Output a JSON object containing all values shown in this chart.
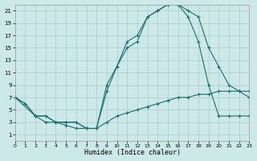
{
  "xlabel": "Humidex (Indice chaleur)",
  "bg_color": "#cce8e8",
  "grid_color": "#aacccc",
  "line_color": "#1a7070",
  "xlim": [
    0,
    23
  ],
  "ylim": [
    0,
    22
  ],
  "xticks": [
    0,
    1,
    2,
    3,
    4,
    5,
    6,
    7,
    8,
    9,
    10,
    11,
    12,
    13,
    14,
    15,
    16,
    17,
    18,
    19,
    20,
    21,
    22,
    23
  ],
  "yticks": [
    1,
    3,
    5,
    7,
    9,
    11,
    13,
    15,
    17,
    19,
    21
  ],
  "line1_x": [
    0,
    1,
    2,
    3,
    4,
    5,
    6,
    7,
    8,
    9,
    10,
    11,
    12,
    13,
    14,
    15,
    16,
    17,
    18,
    19,
    20,
    21,
    22,
    23
  ],
  "line1_y": [
    7,
    6,
    4,
    4,
    3,
    3,
    3,
    2,
    2,
    8,
    12,
    15,
    16,
    20,
    21,
    22,
    22,
    21,
    20,
    15,
    12,
    9,
    8,
    7
  ],
  "line2_x": [
    0,
    2,
    3,
    4,
    5,
    6,
    7,
    8,
    9,
    10,
    11,
    12,
    13,
    14,
    15,
    16,
    17,
    18,
    19,
    20,
    21,
    22,
    23
  ],
  "line2_y": [
    7,
    4,
    4,
    3,
    3,
    3,
    2,
    2,
    3,
    4,
    4.5,
    5,
    5.5,
    6,
    6.5,
    7,
    7,
    7.5,
    7.5,
    8,
    8,
    8,
    8
  ],
  "line3_x": [
    0,
    1,
    2,
    3,
    4,
    5,
    6,
    7,
    8,
    9,
    10,
    11,
    12,
    13,
    14,
    15,
    16,
    17,
    18,
    19,
    20,
    21,
    22,
    23
  ],
  "line3_y": [
    7,
    6,
    4,
    3,
    3,
    2.5,
    2,
    2,
    2,
    9,
    12,
    16,
    17,
    20,
    21,
    22,
    22,
    20,
    16,
    9,
    4,
    4,
    4,
    4
  ]
}
